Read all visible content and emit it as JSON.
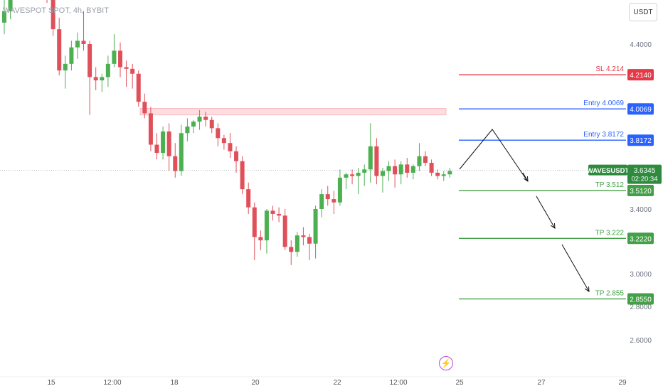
{
  "header": {
    "title": "WAVESPOT SPOT, 4h, BYBIT",
    "currency_button": "USDT"
  },
  "colors": {
    "up": "#4caf50",
    "down": "#e0505a",
    "sl": "#e53945",
    "entry": "#2962ff",
    "tp": "#43a047",
    "zone_fill": "#fddde0",
    "zone_border": "#f7a8b0"
  },
  "icons": {
    "event": "lightning-bolt-icon"
  },
  "chart_data": {
    "type": "candlestick",
    "y_axis": {
      "ticks": [
        "4.4000",
        "3.4000",
        "3.0000",
        "2.8000",
        "2.6000"
      ],
      "ylim": [
        2.47,
        4.88
      ]
    },
    "x_axis": {
      "tick_labels": [
        "15",
        "12:00",
        "18",
        "20",
        "22",
        "12:00",
        "25",
        "27",
        "29"
      ]
    },
    "candles_ohlc": [
      [
        4.53,
        4.8,
        4.46,
        4.6
      ],
      [
        4.6,
        4.8,
        4.55,
        4.74
      ],
      [
        4.74,
        4.86,
        4.67,
        4.78
      ],
      [
        4.78,
        4.86,
        4.72,
        4.82
      ],
      [
        4.82,
        4.86,
        4.75,
        4.79
      ],
      [
        4.79,
        4.84,
        4.71,
        4.76
      ],
      [
        4.76,
        4.8,
        4.7,
        4.73
      ],
      [
        4.73,
        4.78,
        4.65,
        4.68
      ],
      [
        4.68,
        4.72,
        4.45,
        4.49
      ],
      [
        4.49,
        4.56,
        4.21,
        4.24
      ],
      [
        4.24,
        4.33,
        4.13,
        4.28
      ],
      [
        4.28,
        4.42,
        4.24,
        4.38
      ],
      [
        4.38,
        4.47,
        4.31,
        4.42
      ],
      [
        4.42,
        4.6,
        4.36,
        4.4
      ],
      [
        4.4,
        4.42,
        3.97,
        4.2
      ],
      [
        4.2,
        4.26,
        4.12,
        4.18
      ],
      [
        4.18,
        4.22,
        4.11,
        4.2
      ],
      [
        4.2,
        4.33,
        4.14,
        4.28
      ],
      [
        4.28,
        4.46,
        4.26,
        4.36
      ],
      [
        4.36,
        4.41,
        4.2,
        4.26
      ],
      [
        4.26,
        4.3,
        4.14,
        4.25
      ],
      [
        4.25,
        4.28,
        4.13,
        4.22
      ],
      [
        4.22,
        4.24,
        4.02,
        4.05
      ],
      [
        4.05,
        4.1,
        3.95,
        3.98
      ],
      [
        3.98,
        4.02,
        3.75,
        3.79
      ],
      [
        3.79,
        3.86,
        3.7,
        3.74
      ],
      [
        3.74,
        3.9,
        3.7,
        3.87
      ],
      [
        3.87,
        3.92,
        3.63,
        3.72
      ],
      [
        3.72,
        3.8,
        3.59,
        3.63
      ],
      [
        3.63,
        3.91,
        3.6,
        3.86
      ],
      [
        3.86,
        3.95,
        3.81,
        3.9
      ],
      [
        3.9,
        3.94,
        3.86,
        3.93
      ],
      [
        3.93,
        4.0,
        3.88,
        3.96
      ],
      [
        3.96,
        3.99,
        3.9,
        3.94
      ],
      [
        3.94,
        3.96,
        3.86,
        3.89
      ],
      [
        3.89,
        3.92,
        3.78,
        3.83
      ],
      [
        3.83,
        3.85,
        3.76,
        3.8
      ],
      [
        3.8,
        3.86,
        3.71,
        3.75
      ],
      [
        3.75,
        3.78,
        3.62,
        3.69
      ],
      [
        3.69,
        3.72,
        3.49,
        3.52
      ],
      [
        3.52,
        3.56,
        3.37,
        3.41
      ],
      [
        3.41,
        3.44,
        3.09,
        3.23
      ],
      [
        3.23,
        3.27,
        3.15,
        3.21
      ],
      [
        3.21,
        3.4,
        3.13,
        3.39
      ],
      [
        3.39,
        3.42,
        3.33,
        3.37
      ],
      [
        3.37,
        3.41,
        3.32,
        3.36
      ],
      [
        3.36,
        3.4,
        3.15,
        3.17
      ],
      [
        3.17,
        3.21,
        3.06,
        3.14
      ],
      [
        3.14,
        3.26,
        3.11,
        3.24
      ],
      [
        3.24,
        3.29,
        3.18,
        3.23
      ],
      [
        3.23,
        3.25,
        3.09,
        3.19
      ],
      [
        3.19,
        3.42,
        3.1,
        3.4
      ],
      [
        3.4,
        3.52,
        3.35,
        3.49
      ],
      [
        3.49,
        3.54,
        3.42,
        3.46
      ],
      [
        3.46,
        3.51,
        3.37,
        3.44
      ],
      [
        3.44,
        3.64,
        3.42,
        3.59
      ],
      [
        3.59,
        3.62,
        3.52,
        3.61
      ],
      [
        3.61,
        3.64,
        3.55,
        3.6
      ],
      [
        3.6,
        3.65,
        3.49,
        3.62
      ],
      [
        3.62,
        3.67,
        3.54,
        3.64
      ],
      [
        3.64,
        3.92,
        3.56,
        3.78
      ],
      [
        3.78,
        3.83,
        3.55,
        3.6
      ],
      [
        3.6,
        3.65,
        3.5,
        3.63
      ],
      [
        3.63,
        3.69,
        3.57,
        3.66
      ],
      [
        3.66,
        3.7,
        3.53,
        3.61
      ],
      [
        3.61,
        3.69,
        3.55,
        3.67
      ],
      [
        3.67,
        3.71,
        3.59,
        3.62
      ],
      [
        3.62,
        3.67,
        3.58,
        3.66
      ],
      [
        3.66,
        3.8,
        3.63,
        3.72
      ],
      [
        3.72,
        3.75,
        3.66,
        3.68
      ],
      [
        3.68,
        3.7,
        3.6,
        3.62
      ],
      [
        3.62,
        3.64,
        3.58,
        3.6
      ],
      [
        3.6,
        3.63,
        3.57,
        3.61
      ],
      [
        3.61,
        3.65,
        3.59,
        3.63
      ]
    ],
    "resistance_zone": [
      3.97,
      4.01
    ],
    "levels": [
      {
        "label": "SL 4.214",
        "tag": "4.2140",
        "price": 4.214,
        "kind": "sl"
      },
      {
        "label": "Entry 4.0069",
        "tag": "4.0069",
        "price": 4.0069,
        "kind": "entry"
      },
      {
        "label": "Entry 3.8172",
        "tag": "3.8172",
        "price": 3.8172,
        "kind": "entry"
      },
      {
        "label": "TP 3.512",
        "tag": "3.5120",
        "price": 3.512,
        "kind": "tp"
      },
      {
        "label": "TP 3.222",
        "tag": "3.2220",
        "price": 3.222,
        "kind": "tp"
      },
      {
        "label": "TP 2.855",
        "tag": "2.8550",
        "price": 2.855,
        "kind": "tp"
      }
    ],
    "current_price": {
      "symbol": "WAVESUSDT",
      "price": "3.6345",
      "countdown": "02:20:34",
      "value": 3.6345
    }
  }
}
